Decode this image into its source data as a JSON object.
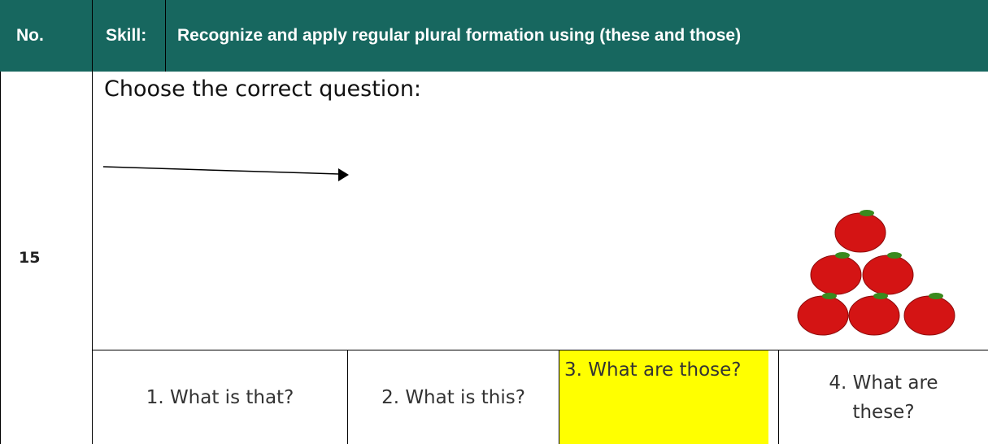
{
  "header": {
    "no": "No.",
    "skill_label": "Skill:",
    "skill": "Recognize and apply regular plural formation using (these and those)"
  },
  "question": {
    "number": "15",
    "prompt": "Choose the correct question:",
    "options": [
      "1. What is that?",
      "2. What is this?",
      "3. What are those?",
      "4. What are these?"
    ]
  }
}
